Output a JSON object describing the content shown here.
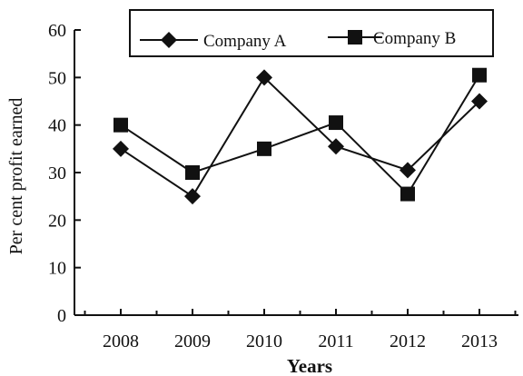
{
  "chart_data": {
    "type": "line",
    "title": "",
    "xlabel": "Years",
    "ylabel": "Per cent profit earned",
    "categories": [
      "2008",
      "2009",
      "2010",
      "2011",
      "2012",
      "2013"
    ],
    "ylim": [
      0,
      60
    ],
    "yticks": [
      0,
      10,
      20,
      30,
      40,
      50,
      60
    ],
    "grid": false,
    "legend_position": "top-right",
    "series": [
      {
        "name": "Company A",
        "marker": "diamond",
        "color": "#111111",
        "values": [
          35,
          25,
          50,
          35.5,
          30.5,
          45
        ]
      },
      {
        "name": "Company B",
        "marker": "square",
        "color": "#111111",
        "values": [
          40,
          30,
          35,
          40.5,
          25.5,
          50.5
        ]
      }
    ]
  }
}
